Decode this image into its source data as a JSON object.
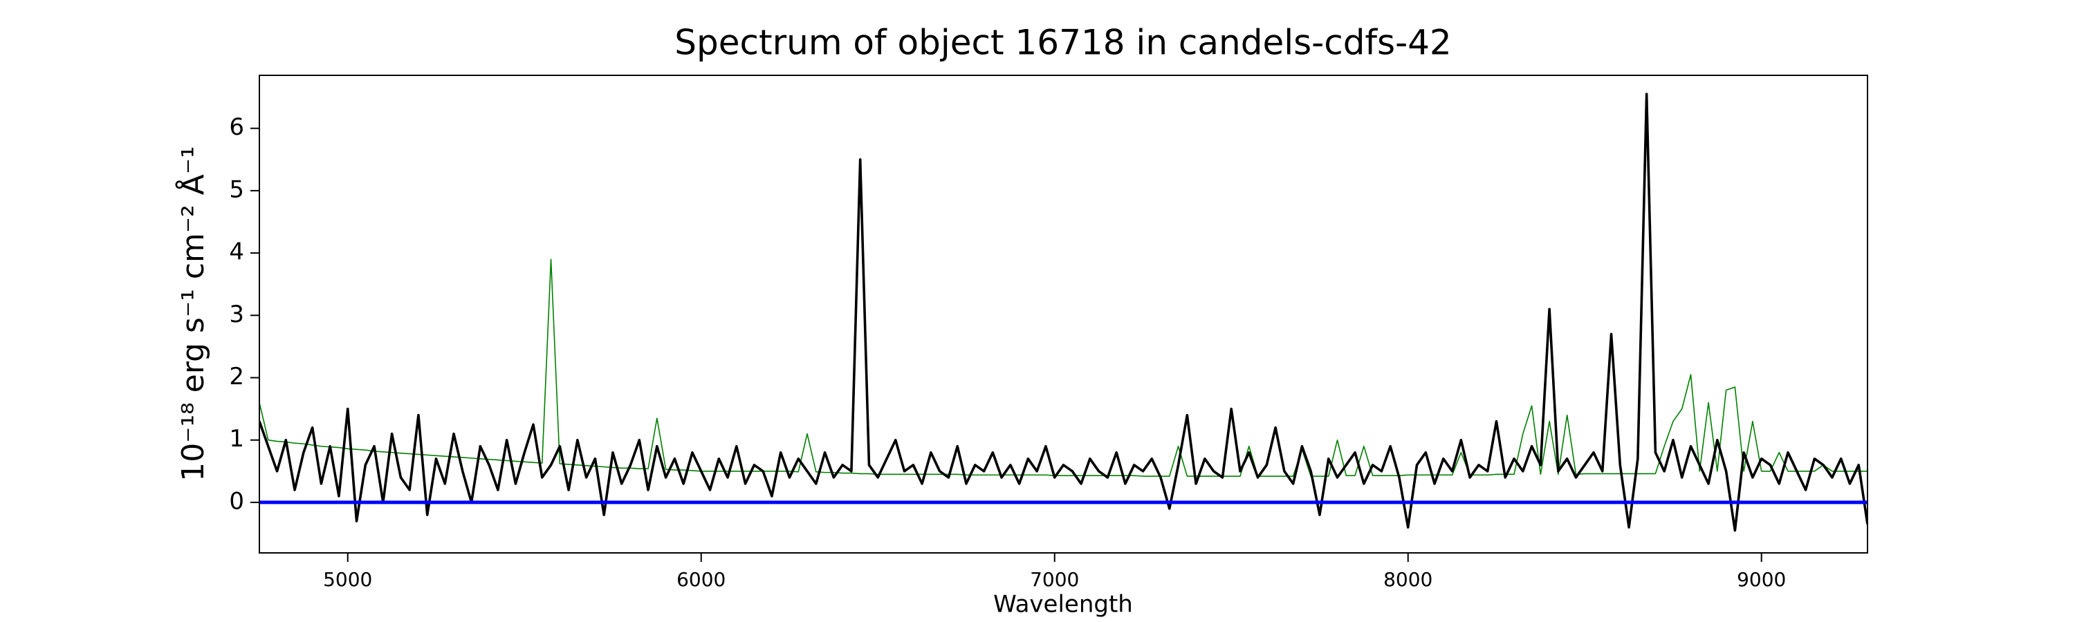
{
  "chart_data": {
    "type": "line",
    "title": "Spectrum of object 16718 in candels-cdfs-42",
    "xlabel": "Wavelength",
    "ylabel": "10⁻¹⁸ erg s⁻¹ cm⁻² Å⁻¹",
    "xlim": [
      4750,
      9300
    ],
    "ylim": [
      -0.81,
      6.85
    ],
    "xticks": [
      5000,
      6000,
      7000,
      8000,
      9000
    ],
    "yticks": [
      0,
      1,
      2,
      3,
      4,
      5,
      6
    ],
    "x": [
      4750,
      4775,
      4800,
      4825,
      4850,
      4875,
      4900,
      4925,
      4950,
      4975,
      5000,
      5025,
      5050,
      5075,
      5100,
      5125,
      5150,
      5175,
      5200,
      5225,
      5250,
      5275,
      5300,
      5325,
      5350,
      5375,
      5400,
      5425,
      5450,
      5475,
      5500,
      5525,
      5550,
      5575,
      5600,
      5625,
      5650,
      5675,
      5700,
      5725,
      5750,
      5775,
      5800,
      5825,
      5850,
      5875,
      5900,
      5925,
      5950,
      5975,
      6000,
      6025,
      6050,
      6075,
      6100,
      6125,
      6150,
      6175,
      6200,
      6225,
      6250,
      6275,
      6300,
      6325,
      6350,
      6375,
      6400,
      6425,
      6450,
      6475,
      6500,
      6525,
      6550,
      6575,
      6600,
      6625,
      6650,
      6675,
      6700,
      6725,
      6750,
      6775,
      6800,
      6825,
      6850,
      6875,
      6900,
      6925,
      6950,
      6975,
      7000,
      7025,
      7050,
      7075,
      7100,
      7125,
      7150,
      7175,
      7200,
      7225,
      7250,
      7275,
      7300,
      7325,
      7350,
      7375,
      7400,
      7425,
      7450,
      7475,
      7500,
      7525,
      7550,
      7575,
      7600,
      7625,
      7650,
      7675,
      7700,
      7725,
      7750,
      7775,
      7800,
      7825,
      7850,
      7875,
      7900,
      7925,
      7950,
      7975,
      8000,
      8025,
      8050,
      8075,
      8100,
      8125,
      8150,
      8175,
      8200,
      8225,
      8250,
      8275,
      8300,
      8325,
      8350,
      8375,
      8400,
      8425,
      8450,
      8475,
      8500,
      8525,
      8550,
      8575,
      8600,
      8625,
      8650,
      8675,
      8700,
      8725,
      8750,
      8775,
      8800,
      8825,
      8850,
      8875,
      8900,
      8925,
      8950,
      8975,
      9000,
      9025,
      9050,
      9075,
      9100,
      9125,
      9150,
      9175,
      9200,
      9225,
      9250,
      9275,
      9300
    ],
    "series": [
      {
        "color": "#008000",
        "width": 1.6,
        "values": [
          1.6,
          1.0,
          0.98,
          0.97,
          0.95,
          0.94,
          0.92,
          0.9,
          0.89,
          0.88,
          0.86,
          0.85,
          0.84,
          0.82,
          0.81,
          0.8,
          0.79,
          0.78,
          0.77,
          0.76,
          0.75,
          0.74,
          0.73,
          0.72,
          0.71,
          0.7,
          0.69,
          0.68,
          0.67,
          0.66,
          0.65,
          0.64,
          0.63,
          3.9,
          0.62,
          0.61,
          0.6,
          0.59,
          0.58,
          0.57,
          0.56,
          0.55,
          0.55,
          0.54,
          0.54,
          1.35,
          0.53,
          0.52,
          0.52,
          0.51,
          0.5,
          0.5,
          0.5,
          0.5,
          0.5,
          0.5,
          0.5,
          0.5,
          0.5,
          0.5,
          0.5,
          0.49,
          1.1,
          0.49,
          0.48,
          0.48,
          0.47,
          0.47,
          0.46,
          0.46,
          0.45,
          0.45,
          0.45,
          0.45,
          0.45,
          0.45,
          0.45,
          0.45,
          0.45,
          0.45,
          0.44,
          0.44,
          0.44,
          0.44,
          0.44,
          0.44,
          0.44,
          0.44,
          0.44,
          0.44,
          0.43,
          0.43,
          0.43,
          0.43,
          0.43,
          0.43,
          0.43,
          0.43,
          0.43,
          0.43,
          0.42,
          0.42,
          0.42,
          0.42,
          0.9,
          0.42,
          0.42,
          0.42,
          0.42,
          0.42,
          0.42,
          0.42,
          0.9,
          0.42,
          0.42,
          0.42,
          0.42,
          0.42,
          0.85,
          0.42,
          0.42,
          0.42,
          1.0,
          0.43,
          0.43,
          0.9,
          0.43,
          0.43,
          0.43,
          0.43,
          0.44,
          0.44,
          0.44,
          0.44,
          0.44,
          0.44,
          0.8,
          0.44,
          0.44,
          0.44,
          0.45,
          0.45,
          0.45,
          1.1,
          1.55,
          0.45,
          1.3,
          0.45,
          1.4,
          0.45,
          0.46,
          0.46,
          0.46,
          0.46,
          0.46,
          0.46,
          0.46,
          0.46,
          0.46,
          0.9,
          1.3,
          1.5,
          2.05,
          0.5,
          1.6,
          0.5,
          1.8,
          1.85,
          0.5,
          1.3,
          0.5,
          0.5,
          0.8,
          0.5,
          0.5,
          0.5,
          0.5,
          0.6,
          0.5,
          0.5,
          0.5,
          0.5,
          0.5
        ]
      },
      {
        "color": "#000000",
        "width": 3.6,
        "values": [
          1.3,
          0.9,
          0.5,
          1.0,
          0.2,
          0.8,
          1.2,
          0.3,
          0.9,
          0.1,
          1.5,
          -0.3,
          0.6,
          0.9,
          0.0,
          1.1,
          0.4,
          0.2,
          1.4,
          -0.2,
          0.7,
          0.3,
          1.1,
          0.5,
          0.0,
          0.9,
          0.6,
          0.2,
          1.0,
          0.3,
          0.8,
          1.25,
          0.4,
          0.6,
          0.9,
          0.2,
          1.0,
          0.4,
          0.7,
          -0.2,
          0.8,
          0.3,
          0.6,
          1.0,
          0.2,
          0.9,
          0.4,
          0.7,
          0.3,
          0.8,
          0.5,
          0.2,
          0.7,
          0.4,
          0.9,
          0.3,
          0.6,
          0.5,
          0.1,
          0.8,
          0.4,
          0.7,
          0.5,
          0.3,
          0.8,
          0.4,
          0.6,
          0.5,
          5.5,
          0.6,
          0.4,
          0.7,
          1.0,
          0.5,
          0.6,
          0.3,
          0.8,
          0.5,
          0.4,
          0.9,
          0.3,
          0.6,
          0.5,
          0.8,
          0.4,
          0.6,
          0.3,
          0.7,
          0.5,
          0.9,
          0.4,
          0.6,
          0.5,
          0.3,
          0.7,
          0.5,
          0.4,
          0.8,
          0.3,
          0.6,
          0.5,
          0.7,
          0.4,
          -0.1,
          0.6,
          1.4,
          0.3,
          0.7,
          0.5,
          0.4,
          1.5,
          0.5,
          0.8,
          0.4,
          0.6,
          1.2,
          0.5,
          0.3,
          0.9,
          0.5,
          -0.2,
          0.7,
          0.4,
          0.6,
          0.8,
          0.3,
          0.6,
          0.5,
          0.9,
          0.4,
          -0.4,
          0.6,
          0.8,
          0.3,
          0.7,
          0.5,
          1.0,
          0.4,
          0.6,
          0.5,
          1.3,
          0.4,
          0.7,
          0.5,
          0.9,
          0.6,
          3.1,
          0.5,
          0.7,
          0.4,
          0.6,
          0.8,
          0.5,
          2.7,
          0.6,
          -0.4,
          0.7,
          6.55,
          0.8,
          0.5,
          1.0,
          0.4,
          0.9,
          0.6,
          0.3,
          1.0,
          0.5,
          -0.45,
          0.8,
          0.4,
          0.7,
          0.6,
          0.3,
          0.8,
          0.5,
          0.2,
          0.7,
          0.6,
          0.4,
          0.7,
          0.3,
          0.6,
          -0.35
        ]
      }
    ],
    "zero_line": {
      "value": 0,
      "color": "#0000ff"
    }
  }
}
